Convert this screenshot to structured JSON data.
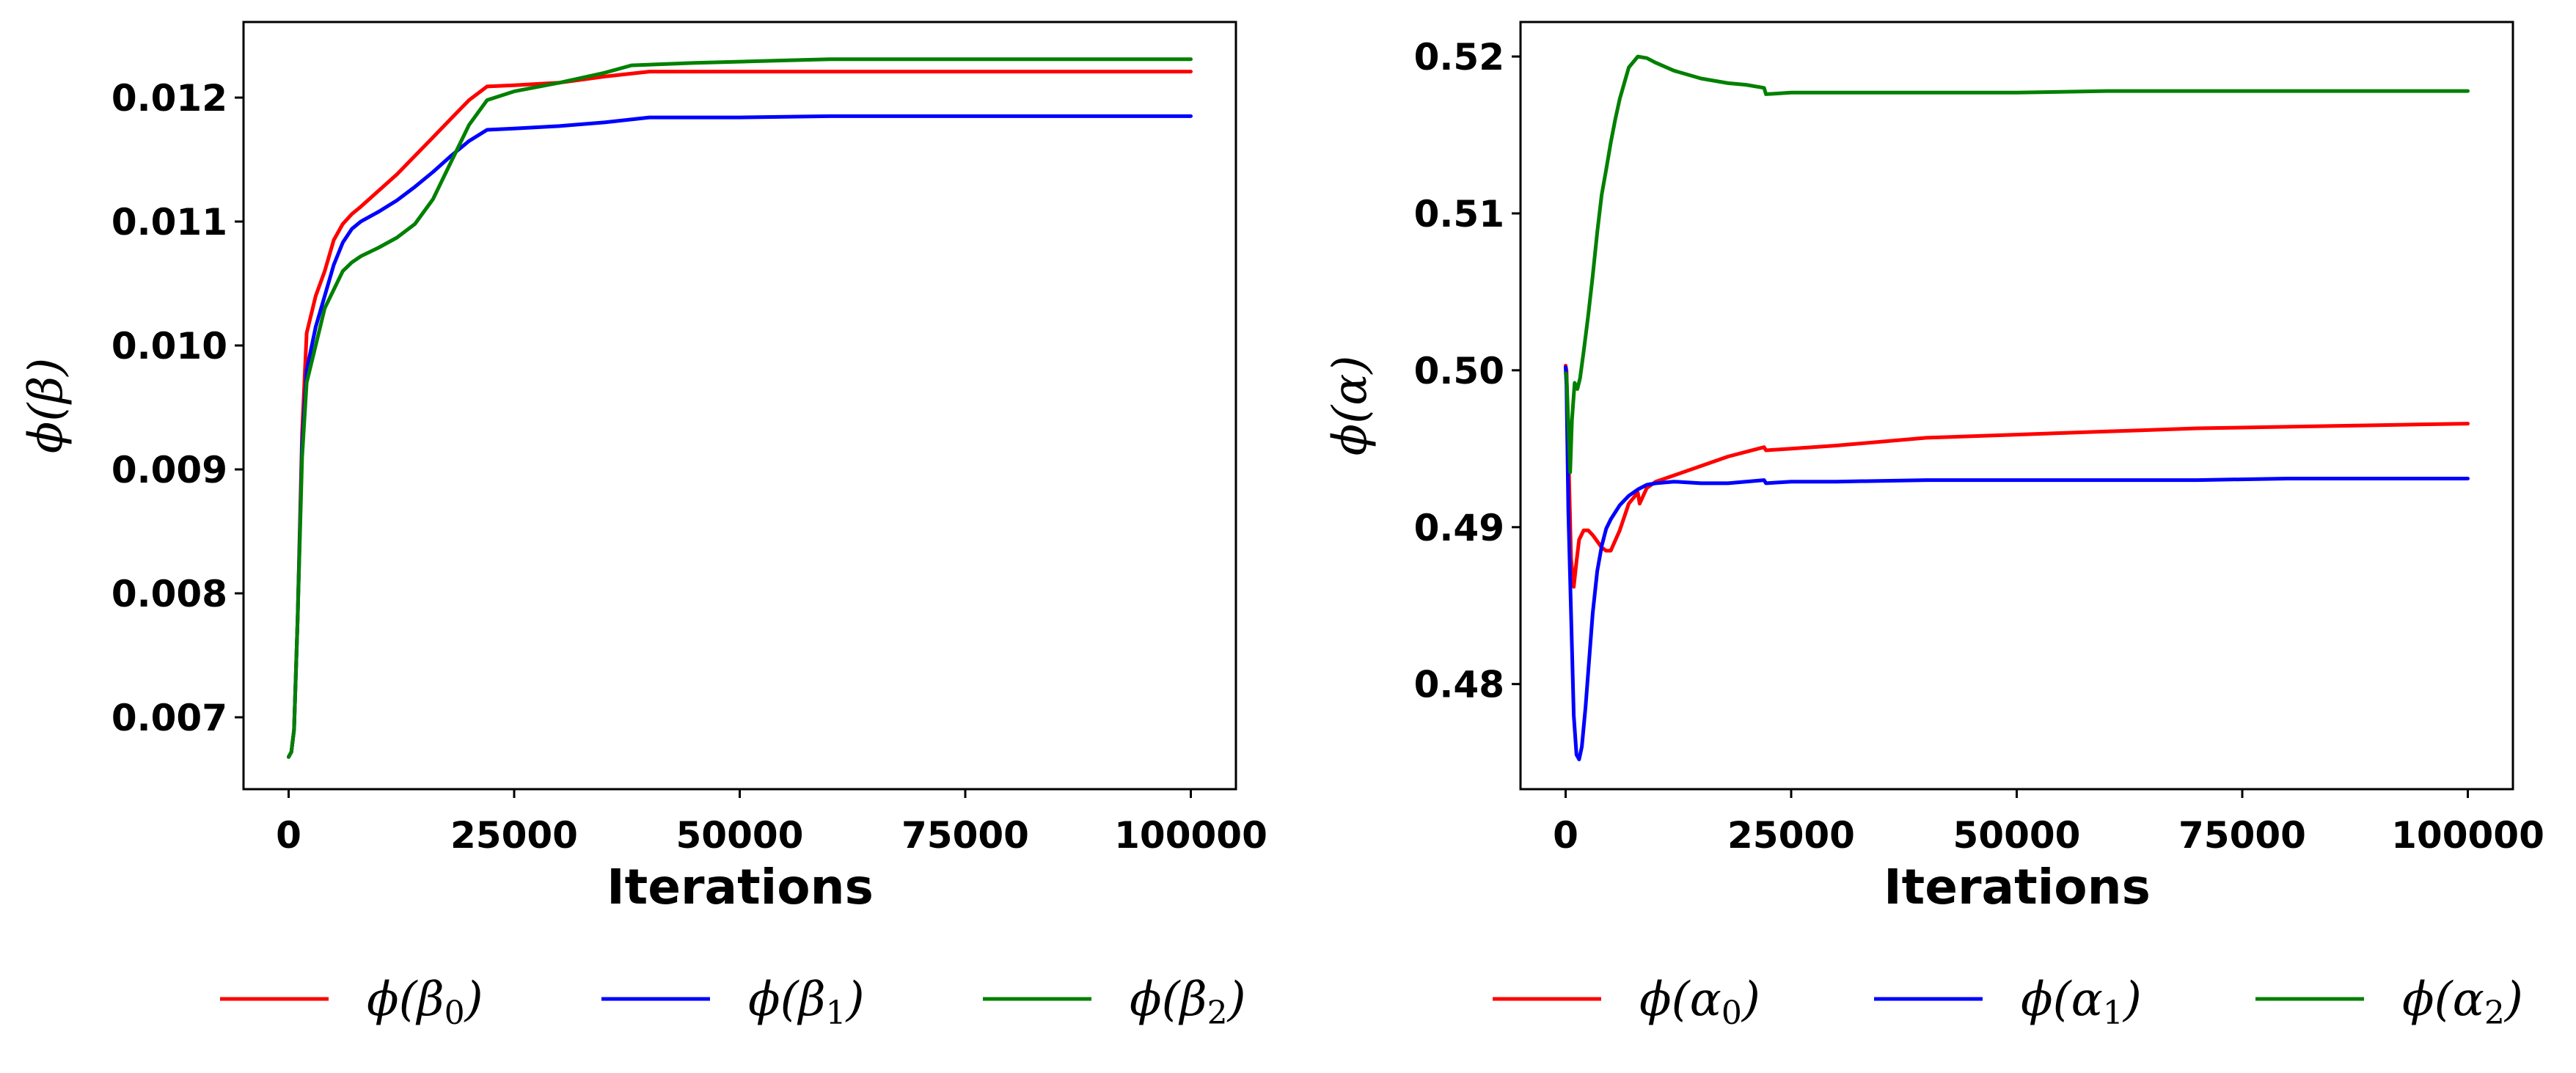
{
  "chart_data": [
    {
      "type": "line",
      "title": "",
      "xlabel": "Iterations",
      "ylabel": "ϕ(β)",
      "xlim": [
        -5000,
        105000
      ],
      "ylim": [
        0.00642,
        0.01261
      ],
      "xticks": [
        0,
        25000,
        50000,
        75000,
        100000
      ],
      "xtick_labels": [
        "0",
        "25000",
        "50000",
        "75000",
        "100000"
      ],
      "yticks": [
        0.007,
        0.008,
        0.009,
        0.01,
        0.011,
        0.012
      ],
      "ytick_labels": [
        "0.007",
        "0.008",
        "0.009",
        "0.010",
        "0.011",
        "0.012"
      ],
      "grid": false,
      "legend_position": "bottom",
      "series": [
        {
          "name": "ϕ(β₀)",
          "legend_base": "ϕ(β",
          "legend_sub": "0",
          "legend_close": ")",
          "color": "#ff0000",
          "x": [
            0,
            300,
            600,
            1000,
            1500,
            2000,
            3000,
            4000,
            5000,
            6000,
            7000,
            8000,
            10000,
            12000,
            14000,
            16000,
            18000,
            20000,
            22000,
            25000,
            30000,
            35000,
            40000,
            50000,
            60000,
            70000,
            80000,
            90000,
            100000
          ],
          "y": [
            0.00668,
            0.00672,
            0.0069,
            0.0078,
            0.0093,
            0.0101,
            0.0104,
            0.0106,
            0.01085,
            0.01098,
            0.01106,
            0.01112,
            0.01125,
            0.01138,
            0.01153,
            0.01168,
            0.01183,
            0.01198,
            0.01209,
            0.0121,
            0.01212,
            0.01217,
            0.01221,
            0.01221,
            0.01221,
            0.01221,
            0.01221,
            0.01221,
            0.01221
          ]
        },
        {
          "name": "ϕ(β₁)",
          "legend_base": "ϕ(β",
          "legend_sub": "1",
          "legend_close": ")",
          "color": "#0000ff",
          "x": [
            0,
            300,
            600,
            1000,
            1500,
            2000,
            3000,
            4000,
            5000,
            6000,
            7000,
            8000,
            10000,
            12000,
            14000,
            16000,
            18000,
            20000,
            22000,
            25000,
            30000,
            35000,
            40000,
            50000,
            60000,
            70000,
            80000,
            90000,
            100000
          ],
          "y": [
            0.00668,
            0.00672,
            0.0069,
            0.0078,
            0.0092,
            0.0098,
            0.01015,
            0.0104,
            0.01065,
            0.01083,
            0.01094,
            0.011,
            0.01108,
            0.01117,
            0.01128,
            0.0114,
            0.01153,
            0.01165,
            0.01174,
            0.01175,
            0.01177,
            0.0118,
            0.01184,
            0.01184,
            0.01185,
            0.01185,
            0.01185,
            0.01185,
            0.01185
          ]
        },
        {
          "name": "ϕ(β₂)",
          "legend_base": "ϕ(β",
          "legend_sub": "2",
          "legend_close": ")",
          "color": "#008000",
          "x": [
            0,
            300,
            600,
            1000,
            1500,
            2000,
            3000,
            4000,
            5000,
            6000,
            7000,
            8000,
            10000,
            12000,
            14000,
            16000,
            18000,
            20000,
            22000,
            25000,
            30000,
            35000,
            38000,
            45000,
            55000,
            60000,
            70000,
            80000,
            90000,
            100000
          ],
          "y": [
            0.00668,
            0.00672,
            0.0069,
            0.0078,
            0.0091,
            0.0097,
            0.01,
            0.0103,
            0.01045,
            0.0106,
            0.01067,
            0.01072,
            0.01079,
            0.01087,
            0.01098,
            0.01118,
            0.01148,
            0.01178,
            0.01198,
            0.01205,
            0.01212,
            0.0122,
            0.01226,
            0.01228,
            0.0123,
            0.01231,
            0.01231,
            0.01231,
            0.01231,
            0.01231
          ]
        }
      ]
    },
    {
      "type": "line",
      "title": "",
      "xlabel": "Iterations",
      "ylabel": "ϕ(α)",
      "xlim": [
        -5000,
        105000
      ],
      "ylim": [
        0.4733,
        0.5222
      ],
      "xticks": [
        0,
        25000,
        50000,
        75000,
        100000
      ],
      "xtick_labels": [
        "0",
        "25000",
        "50000",
        "75000",
        "100000"
      ],
      "yticks": [
        0.48,
        0.49,
        0.5,
        0.51,
        0.52
      ],
      "ytick_labels": [
        "0.48",
        "0.49",
        "0.50",
        "0.51",
        "0.52"
      ],
      "grid": false,
      "legend_position": "bottom",
      "series": [
        {
          "name": "ϕ(α₀)",
          "legend_base": "ϕ(α",
          "legend_sub": "0",
          "legend_close": ")",
          "color": "#ff0000",
          "x": [
            0,
            100,
            300,
            600,
            900,
            1200,
            1500,
            2000,
            2500,
            3000,
            3500,
            4000,
            4500,
            5000,
            6000,
            7000,
            8000,
            8200,
            9000,
            10000,
            12000,
            15000,
            18000,
            20000,
            22000,
            22200,
            25000,
            30000,
            40000,
            50000,
            60000,
            70000,
            80000,
            90000,
            100000
          ],
          "y": [
            0.5003,
            0.5,
            0.495,
            0.488,
            0.4862,
            0.4878,
            0.4892,
            0.4898,
            0.4898,
            0.4895,
            0.4891,
            0.4887,
            0.4885,
            0.4885,
            0.4898,
            0.4915,
            0.4922,
            0.4915,
            0.4925,
            0.4929,
            0.4933,
            0.4939,
            0.4945,
            0.4948,
            0.4951,
            0.4949,
            0.495,
            0.4952,
            0.4957,
            0.4959,
            0.4961,
            0.4963,
            0.4964,
            0.4965,
            0.4966
          ]
        },
        {
          "name": "ϕ(α₁)",
          "legend_base": "ϕ(α",
          "legend_sub": "1",
          "legend_close": ")",
          "color": "#0000ff",
          "x": [
            0,
            100,
            300,
            600,
            900,
            1200,
            1500,
            1800,
            2200,
            2600,
            3000,
            3500,
            4000,
            4500,
            5000,
            6000,
            7000,
            8000,
            9000,
            10000,
            12000,
            15000,
            18000,
            20000,
            22000,
            22200,
            25000,
            30000,
            40000,
            50000,
            60000,
            70000,
            80000,
            90000,
            100000
          ],
          "y": [
            0.5002,
            0.499,
            0.491,
            0.4845,
            0.478,
            0.4755,
            0.4752,
            0.476,
            0.4785,
            0.4815,
            0.4845,
            0.4872,
            0.4888,
            0.4899,
            0.4905,
            0.4914,
            0.492,
            0.4924,
            0.4927,
            0.4928,
            0.4929,
            0.4928,
            0.4928,
            0.4929,
            0.493,
            0.4928,
            0.4929,
            0.4929,
            0.493,
            0.493,
            0.493,
            0.493,
            0.4931,
            0.4931,
            0.4931
          ]
        },
        {
          "name": "ϕ(α₂)",
          "legend_base": "ϕ(α",
          "legend_sub": "2",
          "legend_close": ")",
          "color": "#008000",
          "x": [
            0,
            100,
            300,
            500,
            700,
            1000,
            1300,
            1600,
            2000,
            2500,
            3000,
            3500,
            4000,
            4500,
            5000,
            5500,
            6000,
            7000,
            8000,
            9000,
            10000,
            12000,
            15000,
            18000,
            20000,
            22000,
            22200,
            25000,
            30000,
            40000,
            50000,
            60000,
            70000,
            80000,
            90000,
            100000
          ],
          "y": [
            0.4998,
            0.4997,
            0.4965,
            0.4935,
            0.4968,
            0.4992,
            0.4988,
            0.4995,
            0.5012,
            0.5035,
            0.506,
            0.5088,
            0.5112,
            0.5128,
            0.5145,
            0.516,
            0.5173,
            0.5193,
            0.52,
            0.5199,
            0.5196,
            0.5191,
            0.5186,
            0.5183,
            0.5182,
            0.518,
            0.5176,
            0.5177,
            0.5177,
            0.5177,
            0.5177,
            0.5178,
            0.5178,
            0.5178,
            0.5178,
            0.5178
          ]
        }
      ]
    }
  ]
}
